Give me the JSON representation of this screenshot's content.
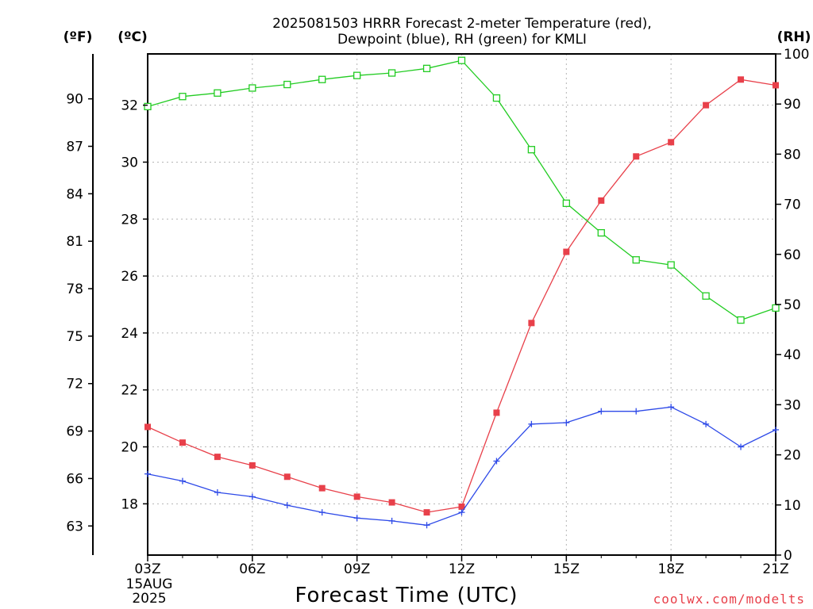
{
  "chart_data": {
    "type": "line",
    "title_lines": [
      "2025081503 HRRR Forecast 2-meter Temperature (red),",
      "Dewpoint (blue), RH (green) for KMLI"
    ],
    "xlabel": "Forecast Time (UTC)",
    "x_ticks": [
      "03Z",
      "06Z",
      "09Z",
      "12Z",
      "15Z",
      "18Z",
      "21Z"
    ],
    "x_date_lines": [
      "15AUG",
      "2025"
    ],
    "x": [
      3,
      4,
      5,
      6,
      7,
      8,
      9,
      10,
      11,
      12,
      13,
      14,
      15,
      16,
      17,
      18,
      19,
      20,
      21
    ],
    "xlim": [
      3,
      21
    ],
    "y_left_c": {
      "unit_label": "(ºC)",
      "ticks": [
        18,
        20,
        22,
        24,
        26,
        28,
        30,
        32
      ],
      "range": [
        16.2,
        33.8
      ]
    },
    "y_left_f": {
      "unit_label": "(ºF)",
      "ticks": [
        63,
        66,
        69,
        72,
        75,
        78,
        81,
        84,
        87,
        90
      ]
    },
    "y_right": {
      "unit_label": "(RH)",
      "ticks": [
        0,
        10,
        20,
        30,
        40,
        50,
        60,
        70,
        80,
        90,
        100
      ],
      "range": [
        0,
        100
      ]
    },
    "grid": true,
    "series": [
      {
        "name": "Temperature",
        "axis": "left_c",
        "color": "#e8404a",
        "marker": "filled-square",
        "values": [
          20.7,
          20.15,
          19.65,
          19.35,
          18.95,
          18.55,
          18.25,
          18.05,
          17.7,
          17.9,
          21.2,
          24.35,
          26.85,
          28.65,
          30.2,
          30.7,
          32.0,
          32.9,
          32.7
        ]
      },
      {
        "name": "Dewpoint",
        "axis": "left_c",
        "color": "#2e4ae8",
        "marker": "plus",
        "values": [
          19.05,
          18.8,
          18.4,
          18.25,
          17.95,
          17.7,
          17.5,
          17.4,
          17.25,
          17.7,
          19.5,
          20.8,
          20.85,
          21.25,
          21.25,
          21.4,
          20.8,
          20.0,
          20.6
        ]
      },
      {
        "name": "RH",
        "axis": "right",
        "color": "#22cc22",
        "marker": "open-square",
        "values": [
          89.5,
          91.5,
          92.2,
          93.2,
          93.9,
          94.9,
          95.7,
          96.2,
          97.1,
          98.7,
          91.2,
          80.9,
          70.2,
          64.3,
          58.9,
          57.9,
          51.7,
          46.9,
          49.3
        ]
      }
    ]
  },
  "credit": "coolwx.com/modelts"
}
